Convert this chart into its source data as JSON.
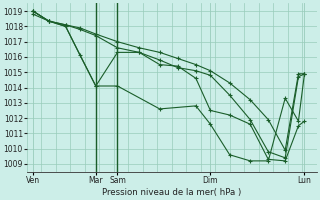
{
  "bg_color": "#cceee8",
  "grid_color": "#99ccbb",
  "line_color": "#1a5e2a",
  "xlabel_text": "Pression niveau de la mer( hPa )",
  "ylim": [
    1008.5,
    1019.5
  ],
  "yticks": [
    1009,
    1010,
    1011,
    1012,
    1013,
    1014,
    1015,
    1016,
    1017,
    1018,
    1019
  ],
  "xlim": [
    0,
    240
  ],
  "vline_positions": [
    57,
    75
  ],
  "xtick_positions": [
    5,
    57,
    75,
    152,
    230
  ],
  "xtick_labels": [
    "Ven",
    "Mar",
    "Sam",
    "Dim",
    "Lun"
  ],
  "line1_x": [
    5,
    18,
    32,
    57,
    75,
    93,
    110,
    125,
    140,
    152,
    168,
    185,
    200,
    214,
    225,
    230
  ],
  "line1_y": [
    1019.0,
    1018.35,
    1018.0,
    1014.1,
    1016.3,
    1016.3,
    1015.5,
    1015.4,
    1014.6,
    1012.5,
    1012.2,
    1011.6,
    1009.3,
    1009.2,
    1011.5,
    1011.8
  ],
  "line2_x": [
    5,
    18,
    32,
    44,
    57,
    75,
    93,
    110,
    125,
    140,
    152,
    168,
    185,
    200,
    214,
    225,
    230
  ],
  "line2_y": [
    1019.0,
    1018.35,
    1018.1,
    1017.8,
    1017.4,
    1016.6,
    1016.3,
    1015.8,
    1015.3,
    1015.1,
    1014.8,
    1013.5,
    1011.9,
    1009.8,
    1009.4,
    1014.7,
    1014.9
  ],
  "line3_x": [
    5,
    18,
    32,
    44,
    57,
    75,
    93,
    110,
    125,
    140,
    152,
    168,
    185,
    200,
    214,
    225,
    230
  ],
  "line3_y": [
    1019.0,
    1018.35,
    1018.1,
    1017.9,
    1017.5,
    1017.0,
    1016.6,
    1016.3,
    1015.9,
    1015.5,
    1015.1,
    1014.3,
    1013.2,
    1011.9,
    1009.9,
    1014.9,
    1014.9
  ],
  "line4_x": [
    5,
    18,
    32,
    44,
    57,
    75,
    110,
    140,
    152,
    168,
    185,
    200,
    214,
    225,
    230
  ],
  "line4_y": [
    1018.8,
    1018.35,
    1018.0,
    1016.1,
    1014.1,
    1014.1,
    1012.6,
    1012.8,
    1011.6,
    1009.6,
    1009.2,
    1009.2,
    1013.3,
    1011.8,
    1014.9
  ]
}
